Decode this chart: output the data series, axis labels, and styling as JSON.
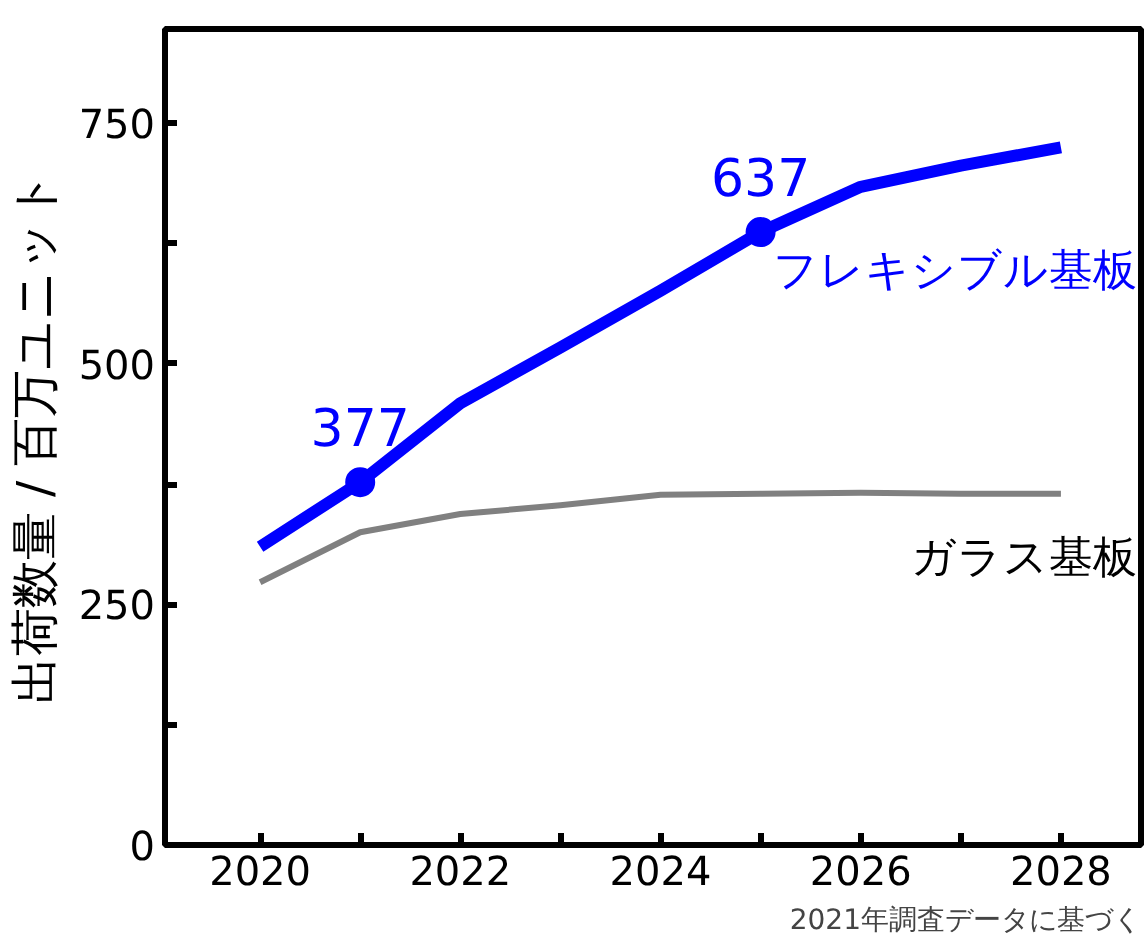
{
  "chart_data": {
    "type": "line",
    "ylabel": "出荷数量 / 百万ユニット",
    "x": [
      2020,
      2021,
      2022,
      2023,
      2024,
      2025,
      2026,
      2027,
      2028
    ],
    "series": [
      {
        "name": "フレキシブル基板",
        "color": "#0000ff",
        "values": [
          310,
          377,
          459,
          517,
          576,
          637,
          684,
          706,
          725
        ],
        "value_labels": [
          null,
          "377",
          null,
          null,
          null,
          "637",
          null,
          null,
          null
        ]
      },
      {
        "name": "ガラス基板",
        "color": "#808080",
        "values": [
          273,
          325,
          344,
          353,
          364,
          365,
          366,
          365,
          365
        ]
      }
    ],
    "xlim": [
      2019.05,
      2028.8
    ],
    "xticks": [
      2020,
      {
        "value": 2021,
        "label": null
      },
      2022,
      {
        "value": 2023,
        "label": null
      },
      2024,
      {
        "value": 2025,
        "label": null
      },
      2026,
      {
        "value": 2027,
        "label": null
      },
      2028
    ],
    "ylim": [
      0,
      848
    ],
    "yticks": [
      0,
      {
        "value": 125,
        "label": null
      },
      250,
      {
        "value": 375,
        "label": null
      },
      500,
      {
        "value": 625,
        "label": null
      },
      750
    ],
    "grid": false,
    "annotations": [
      "2021年調査データに基づく"
    ]
  }
}
